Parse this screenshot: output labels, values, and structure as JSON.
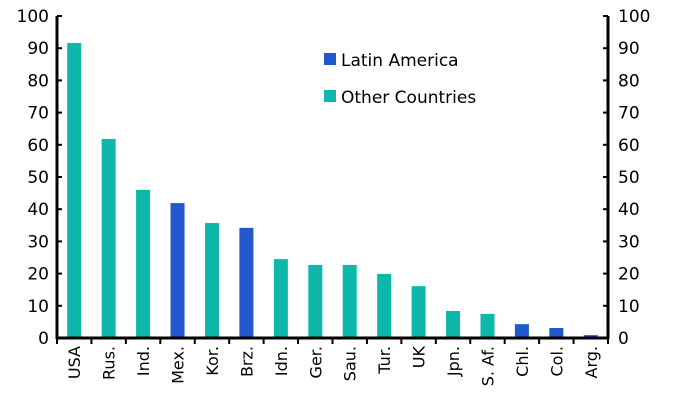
{
  "chart_data": {
    "type": "bar",
    "title": "",
    "xlabel": "",
    "ylabel": "",
    "ylim": [
      0,
      100
    ],
    "yticks": [
      0,
      10,
      20,
      30,
      40,
      50,
      60,
      70,
      80,
      90,
      100
    ],
    "grid": false,
    "legend_position": "top-center",
    "categories": [
      "USA",
      "Rus.",
      "Ind.",
      "Mex.",
      "Kor.",
      "Brz.",
      "Idn.",
      "Ger.",
      "Sau.",
      "Tur.",
      "UK",
      "Jpn.",
      "S. Af.",
      "Chl.",
      "Col.",
      "Arg."
    ],
    "values": [
      91.6,
      61.8,
      46.0,
      41.9,
      35.7,
      34.2,
      24.5,
      22.7,
      22.7,
      19.9,
      16.1,
      8.4,
      7.5,
      4.3,
      3.1,
      0.9
    ],
    "groups": [
      "Other Countries",
      "Other Countries",
      "Other Countries",
      "Latin America",
      "Other Countries",
      "Latin America",
      "Other Countries",
      "Other Countries",
      "Other Countries",
      "Other Countries",
      "Other Countries",
      "Other Countries",
      "Other Countries",
      "Latin America",
      "Latin America",
      "Latin America"
    ],
    "legend": [
      {
        "name": "Latin America",
        "color": "#2159cc"
      },
      {
        "name": "Other Countries",
        "color": "#0db8ab"
      }
    ]
  }
}
